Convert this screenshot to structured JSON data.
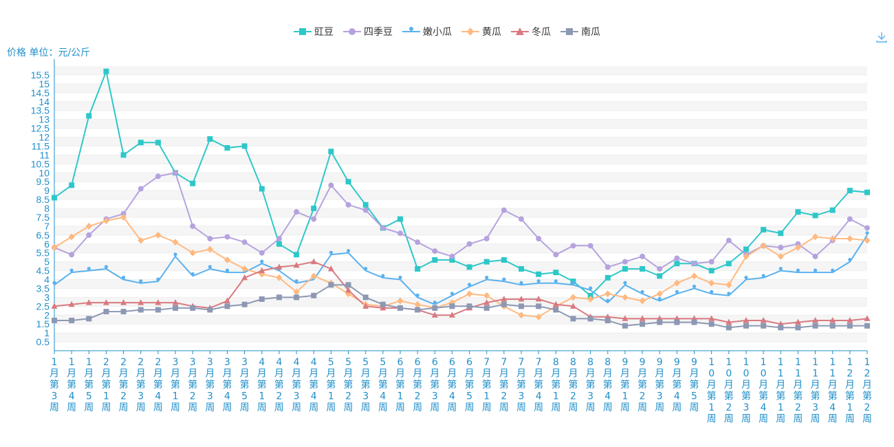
{
  "ylabel": "价格 单位：元/公斤",
  "download_icon": "download-icon",
  "colors": {
    "axis": "#1f8fca",
    "grid": "#eeeeee",
    "band": "#f5f5f5"
  },
  "chart_data": {
    "type": "line",
    "title": "",
    "ylabel": "价格 单位：元/公斤",
    "ylim": [
      0,
      16
    ],
    "yticks": [
      "0.5",
      "1",
      "1.5",
      "2",
      "2.5",
      "3",
      "3.5",
      "4",
      "4.5",
      "5",
      "5.5",
      "6",
      "6.5",
      "7",
      "7.5",
      "8",
      "8.5",
      "9",
      "9.5",
      "10",
      "10.5",
      "11",
      "11.5",
      "12",
      "12.5",
      "13",
      "13.5",
      "14",
      "14.5",
      "15",
      "15.5"
    ],
    "categories": [
      "1月第3周",
      "1月第4周",
      "1月第5周",
      "2月第1周",
      "2月第2周",
      "2月第3周",
      "2月第4周",
      "3月第1周",
      "3月第2周",
      "3月第3周",
      "3月第4周",
      "3月第5周",
      "4月第1周",
      "4月第2周",
      "4月第3周",
      "4月第4周",
      "5月第1周",
      "5月第2周",
      "5月第3周",
      "5月第4周",
      "6月第1周",
      "6月第2周",
      "6月第3周",
      "6月第4周",
      "6月第5周",
      "7月第1周",
      "7月第2周",
      "7月第3周",
      "7月第4周",
      "8月第1周",
      "8月第2周",
      "8月第3周",
      "8月第4周",
      "9月第1周",
      "9月第2周",
      "9月第3周",
      "9月第4周",
      "9月第5周",
      "10月第1周",
      "10月第2周",
      "10月第3周",
      "10月第4周",
      "11月第1周",
      "11月第2周",
      "11月第3周",
      "11月第4周",
      "12月第1周",
      "12月第2周"
    ],
    "series": [
      {
        "name": "豇豆",
        "color": "#2ec7c9",
        "symbol": "rect",
        "values": [
          8.6,
          9.3,
          13.2,
          15.7,
          11.0,
          11.7,
          11.7,
          10.0,
          9.4,
          11.9,
          11.4,
          11.5,
          9.1,
          6.0,
          5.4,
          8.0,
          11.2,
          9.5,
          8.2,
          6.9,
          7.4,
          4.6,
          5.1,
          5.1,
          4.7,
          5.0,
          5.1,
          4.6,
          4.3,
          4.4,
          3.9,
          3.1,
          4.1,
          4.6,
          4.6,
          4.2,
          4.9,
          4.9,
          4.5,
          4.9,
          5.7,
          6.8,
          6.6,
          7.8,
          7.6,
          7.9,
          9.0,
          8.9
        ]
      },
      {
        "name": "四季豆",
        "color": "#b6a2de",
        "symbol": "circle",
        "values": [
          5.8,
          5.4,
          6.5,
          7.4,
          7.7,
          9.1,
          9.8,
          10.0,
          7.0,
          6.3,
          6.4,
          6.1,
          5.5,
          6.3,
          7.8,
          7.4,
          9.3,
          8.2,
          7.9,
          6.9,
          6.6,
          6.1,
          5.6,
          5.3,
          6.0,
          6.3,
          7.9,
          7.4,
          6.3,
          5.4,
          5.9,
          5.9,
          4.7,
          5.0,
          5.3,
          4.6,
          5.2,
          4.9,
          5.0,
          6.2,
          5.4,
          5.9,
          5.8,
          6.0,
          5.3,
          6.2,
          7.4,
          6.9
        ]
      },
      {
        "name": "嫩小瓜",
        "color": "#5ab1ef",
        "symbol": "pin",
        "values": [
          3.7,
          4.4,
          4.5,
          4.6,
          4.0,
          3.8,
          3.9,
          5.3,
          4.2,
          4.6,
          4.4,
          4.4,
          4.9,
          4.5,
          3.8,
          4.0,
          5.4,
          5.5,
          4.5,
          4.1,
          4.0,
          3.0,
          2.6,
          3.1,
          3.6,
          4.0,
          3.9,
          3.7,
          3.8,
          3.8,
          3.7,
          3.4,
          2.7,
          3.7,
          3.2,
          2.8,
          3.2,
          3.5,
          3.2,
          3.1,
          4.0,
          4.1,
          4.5,
          4.4,
          4.4,
          4.4,
          5.0,
          6.5
        ]
      },
      {
        "name": "黄瓜",
        "color": "#ffb980",
        "symbol": "diamond",
        "values": [
          5.8,
          6.4,
          7.0,
          7.3,
          7.5,
          6.2,
          6.5,
          6.1,
          5.5,
          5.7,
          5.1,
          4.6,
          4.3,
          4.1,
          3.3,
          4.2,
          3.8,
          3.2,
          2.6,
          2.5,
          2.8,
          2.6,
          2.4,
          2.7,
          3.2,
          3.1,
          2.5,
          2.0,
          1.9,
          2.5,
          3.0,
          2.9,
          3.2,
          3.0,
          2.8,
          3.2,
          3.8,
          4.2,
          3.8,
          3.7,
          5.3,
          5.9,
          5.3,
          5.8,
          6.4,
          6.3,
          6.3,
          6.2
        ]
      },
      {
        "name": "冬瓜",
        "color": "#d87a80",
        "symbol": "triangle",
        "values": [
          2.5,
          2.6,
          2.7,
          2.7,
          2.7,
          2.7,
          2.7,
          2.7,
          2.5,
          2.4,
          2.8,
          4.1,
          4.5,
          4.7,
          4.8,
          5.0,
          4.6,
          3.4,
          2.5,
          2.4,
          2.4,
          2.3,
          2.0,
          2.0,
          2.4,
          2.7,
          2.9,
          2.9,
          2.9,
          2.6,
          2.5,
          1.9,
          1.9,
          1.8,
          1.8,
          1.8,
          1.8,
          1.8,
          1.8,
          1.6,
          1.7,
          1.7,
          1.5,
          1.6,
          1.7,
          1.7,
          1.7,
          1.8
        ]
      },
      {
        "name": "南瓜",
        "color": "#8d98b3",
        "symbol": "rect",
        "values": [
          1.7,
          1.7,
          1.8,
          2.2,
          2.2,
          2.3,
          2.3,
          2.4,
          2.4,
          2.3,
          2.5,
          2.6,
          2.9,
          3.0,
          3.0,
          3.1,
          3.7,
          3.7,
          3.0,
          2.6,
          2.4,
          2.3,
          2.4,
          2.5,
          2.5,
          2.4,
          2.6,
          2.5,
          2.5,
          2.3,
          1.8,
          1.8,
          1.7,
          1.4,
          1.5,
          1.6,
          1.6,
          1.6,
          1.5,
          1.3,
          1.4,
          1.4,
          1.3,
          1.3,
          1.4,
          1.4,
          1.4,
          1.4
        ]
      }
    ]
  }
}
